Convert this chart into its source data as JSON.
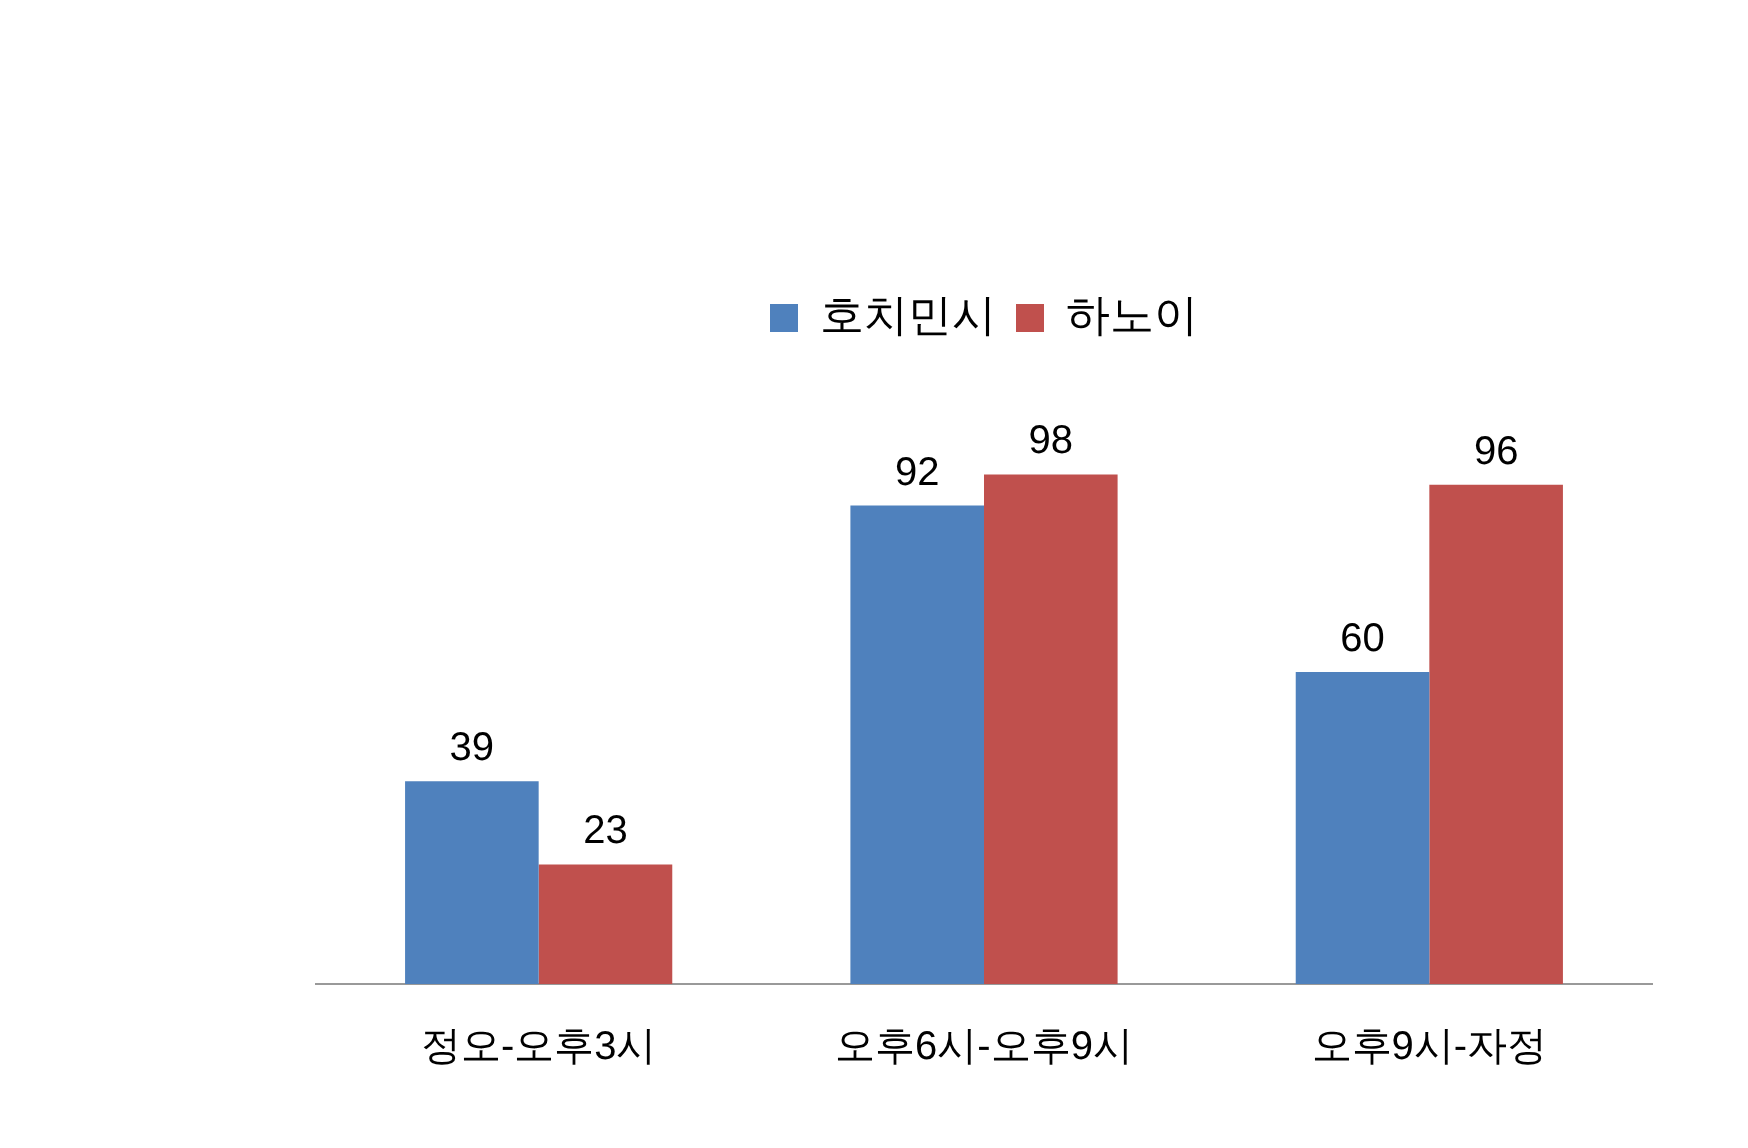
{
  "chart_data": {
    "type": "bar",
    "categories": [
      "정오-오후3시",
      "오후6시-오후9시",
      "오후9시-자정"
    ],
    "series": [
      {
        "name": "호치민시",
        "color": "#4f81bd",
        "values": [
          39,
          92,
          60
        ]
      },
      {
        "name": "하노이",
        "color": "#c0504d",
        "values": [
          23,
          98,
          96
        ]
      }
    ],
    "data_labels": true,
    "legend": "top",
    "grid": false
  }
}
